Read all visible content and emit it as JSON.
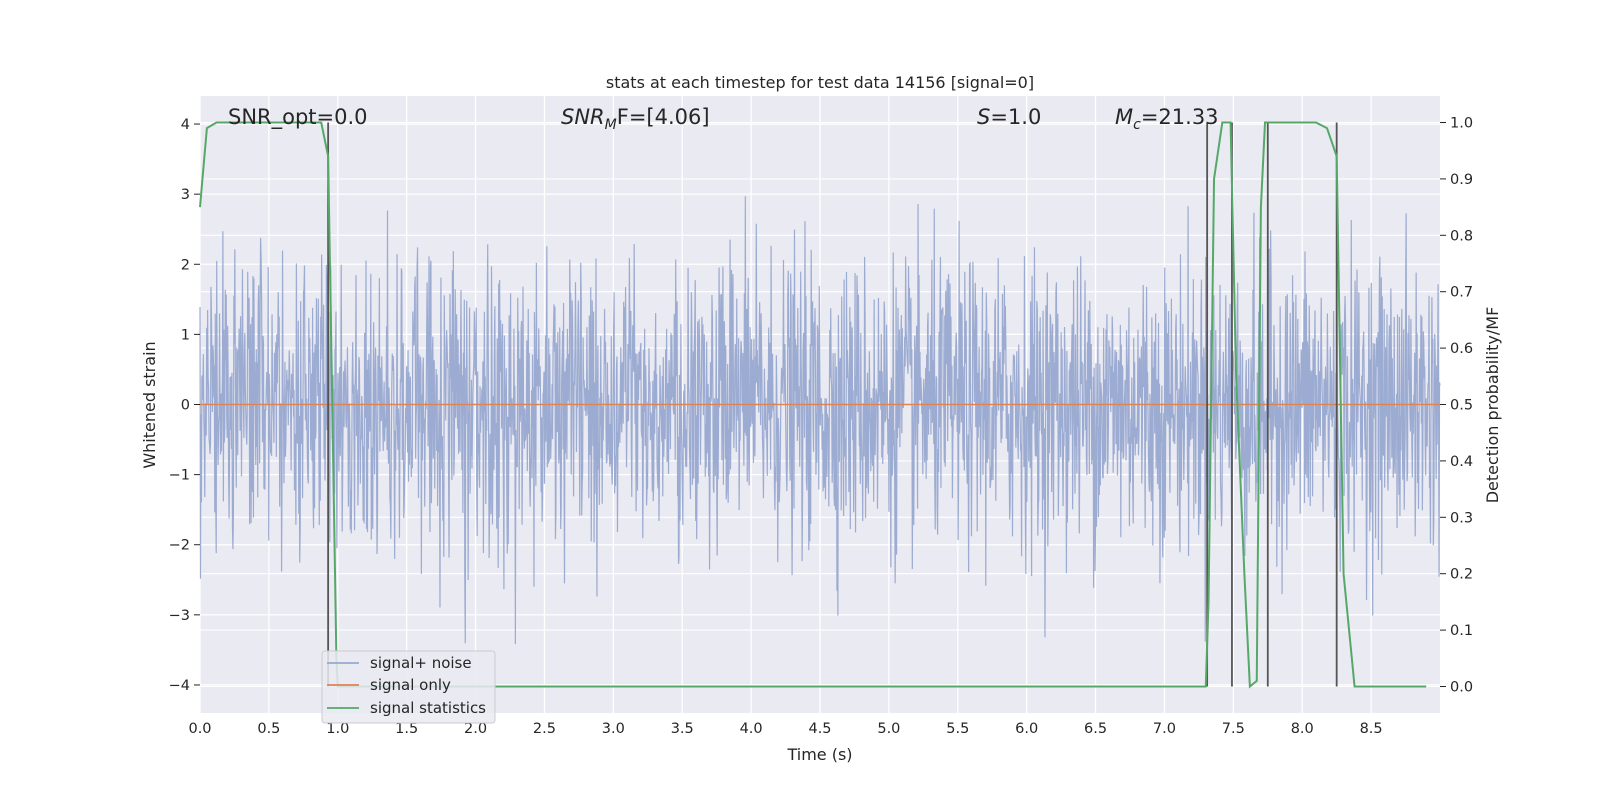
{
  "chart_data": {
    "type": "line",
    "title": "stats at each timestep for test data 14156 [signal=0]",
    "xlabel": "Time (s)",
    "ylabel_left": "Whitened strain",
    "ylabel_right": "Detection probability/MF",
    "xlim": [
      0.0,
      9.0
    ],
    "ylim_left": [
      -4.4,
      4.4
    ],
    "ylim_right": [
      -0.047,
      1.047
    ],
    "x_ticks": [
      "0.0",
      "0.5",
      "1.0",
      "1.5",
      "2.0",
      "2.5",
      "3.0",
      "3.5",
      "4.0",
      "4.5",
      "5.0",
      "5.5",
      "6.0",
      "6.5",
      "7.0",
      "7.5",
      "8.0",
      "8.5"
    ],
    "y_ticks_left": [
      "4",
      "3",
      "2",
      "1",
      "0",
      "−1",
      "−2",
      "−3",
      "−4"
    ],
    "y_ticks_right": [
      "1.0",
      "0.9",
      "0.8",
      "0.7",
      "0.6",
      "0.5",
      "0.4",
      "0.3",
      "0.2",
      "0.1",
      "0.0"
    ],
    "grid": true,
    "legend_placement": "lower-left",
    "annotations": {
      "snr_opt": "SNR_opt=0.0",
      "snr_mf_main": "SNR",
      "snr_mf_sub": "M",
      "snr_mf_rest": "F=[4.06]",
      "s_main": "S",
      "s_rest": "=1.0",
      "mc_main": "M",
      "mc_sub": "c",
      "mc_rest": "=21.33"
    },
    "series": [
      {
        "name": "signal+ noise",
        "color": "#98A8CF",
        "description_values": "whitened strain noise, approx. within [-3.6, 3.3]",
        "envelope_typical": [
          -1.6,
          1.6
        ]
      },
      {
        "name": "signal only",
        "color": "#DD8452",
        "x": [
          0.0,
          9.0
        ],
        "y": [
          0.0,
          0.0
        ]
      },
      {
        "name": "signal statistics",
        "color": "#55A868",
        "axis": "right",
        "x": [
          0.0,
          0.05,
          0.12,
          0.2,
          0.3,
          0.5,
          0.7,
          0.88,
          0.93,
          0.96,
          0.99,
          1.0,
          7.3,
          7.32,
          7.36,
          7.42,
          7.48,
          7.52,
          7.58,
          7.62,
          7.67,
          7.7,
          7.73,
          7.8,
          7.9,
          8.0,
          8.1,
          8.18,
          8.25,
          8.3,
          8.38,
          8.45,
          8.6,
          8.9
        ],
        "y": [
          0.85,
          0.99,
          1.0,
          1.0,
          1.0,
          1.0,
          1.0,
          1.0,
          0.94,
          0.5,
          0.05,
          0.0,
          0.0,
          0.15,
          0.9,
          1.0,
          1.0,
          0.55,
          0.2,
          0.0,
          0.01,
          0.85,
          1.0,
          1.0,
          1.0,
          1.0,
          1.0,
          0.99,
          0.94,
          0.2,
          0.0,
          0.0,
          0.0,
          0.0
        ]
      }
    ],
    "vertical_lines_x": [
      0.93,
      7.31,
      7.49,
      7.75,
      8.25
    ],
    "colors": {
      "plot_background": "#EAEAF2",
      "grid": "#FFFFFF",
      "vline": "#555555"
    }
  }
}
